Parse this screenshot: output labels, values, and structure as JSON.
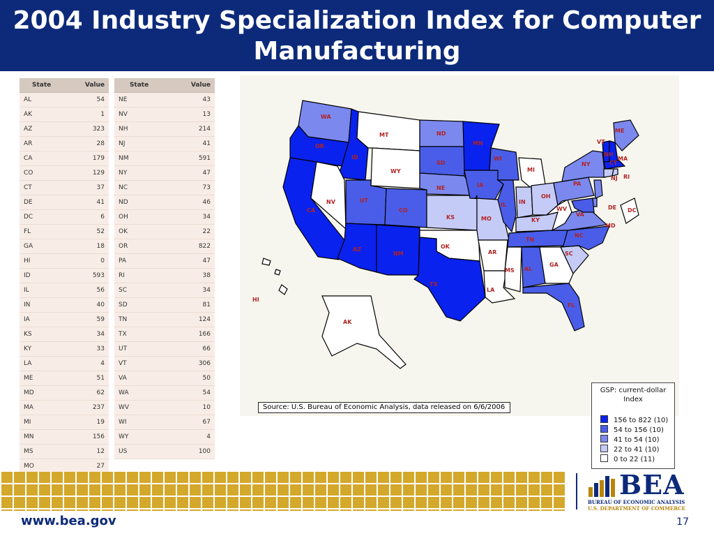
{
  "title": {
    "line1": "2004 Industry Specialization Index for Computer",
    "line2": "Manufacturing"
  },
  "table": {
    "header_state": "State",
    "header_value": "Value",
    "left_rows": [
      [
        "AL",
        "54"
      ],
      [
        "AK",
        "1"
      ],
      [
        "AZ",
        "323"
      ],
      [
        "AR",
        "28"
      ],
      [
        "CA",
        "179"
      ],
      [
        "CO",
        "129"
      ],
      [
        "CT",
        "37"
      ],
      [
        "DE",
        "41"
      ],
      [
        "DC",
        "6"
      ],
      [
        "FL",
        "52"
      ],
      [
        "GA",
        "18"
      ],
      [
        "HI",
        "0"
      ],
      [
        "ID",
        "593"
      ],
      [
        "IL",
        "56"
      ],
      [
        "IN",
        "40"
      ],
      [
        "IA",
        "59"
      ],
      [
        "KS",
        "34"
      ],
      [
        "KY",
        "33"
      ],
      [
        "LA",
        "4"
      ],
      [
        "ME",
        "51"
      ],
      [
        "MD",
        "62"
      ],
      [
        "MA",
        "237"
      ],
      [
        "MI",
        "19"
      ],
      [
        "MN",
        "156"
      ],
      [
        "MS",
        "12"
      ],
      [
        "MO",
        "27"
      ]
    ],
    "right_rows": [
      [
        "NE",
        "43"
      ],
      [
        "NV",
        "13"
      ],
      [
        "NH",
        "214"
      ],
      [
        "NJ",
        "41"
      ],
      [
        "NM",
        "591"
      ],
      [
        "NY",
        "47"
      ],
      [
        "NC",
        "73"
      ],
      [
        "ND",
        "46"
      ],
      [
        "OH",
        "34"
      ],
      [
        "OK",
        "22"
      ],
      [
        "OR",
        "822"
      ],
      [
        "PA",
        "47"
      ],
      [
        "RI",
        "38"
      ],
      [
        "SC",
        "34"
      ],
      [
        "SD",
        "81"
      ],
      [
        "TN",
        "124"
      ],
      [
        "TX",
        "166"
      ],
      [
        "UT",
        "66"
      ],
      [
        "VT",
        "306"
      ],
      [
        "VA",
        "50"
      ],
      [
        "WA",
        "54"
      ],
      [
        "WV",
        "10"
      ],
      [
        "WI",
        "67"
      ],
      [
        "WY",
        "4"
      ],
      [
        "US",
        "100"
      ]
    ]
  },
  "map": {
    "state_labels": [
      "WA",
      "OR",
      "CA",
      "ID",
      "NV",
      "MT",
      "WY",
      "UT",
      "AZ",
      "CO",
      "NM",
      "ND",
      "SD",
      "NE",
      "KS",
      "OK",
      "TX",
      "MN",
      "IA",
      "MO",
      "AR",
      "LA",
      "WI",
      "IL",
      "MI",
      "IN",
      "OH",
      "KY",
      "TN",
      "MS",
      "AL",
      "GA",
      "FL",
      "SC",
      "NC",
      "VA",
      "WV",
      "PA",
      "NY",
      "VT",
      "NH",
      "ME",
      "MA",
      "CT",
      "RI",
      "NJ",
      "DE",
      "MD",
      "DC",
      "AK",
      "HI"
    ],
    "source": "Source: U.S. Bureau of Economic Analysis, data released on 6/6/2006",
    "legend_title_1": "GSP: current-dollar",
    "legend_title_2": "Index",
    "legend_items": [
      {
        "label": "156 to 822  (10)",
        "color": "#0a22ee"
      },
      {
        "label": "54 to  156  (10)",
        "color": "#4a5de8"
      },
      {
        "label": "41 to   54  (10)",
        "color": "#7b88ee"
      },
      {
        "label": "22 to   41  (10)",
        "color": "#c5cbf7"
      },
      {
        "label": "0 to   22  (11)",
        "color": "#ffffff"
      }
    ]
  },
  "logo": {
    "text": "BEA",
    "sub1": "BUREAU OF ECONOMIC ANALYSIS",
    "sub2": "U.S. DEPARTMENT OF COMMERCE"
  },
  "footer": {
    "url": "www.bea.gov",
    "page": "17"
  }
}
